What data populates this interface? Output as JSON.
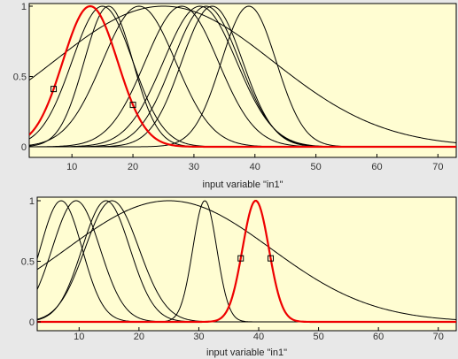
{
  "chart_data": [
    {
      "type": "line",
      "title": "",
      "xlabel": "input variable \"in1\"",
      "ylabel": "",
      "xlim": [
        3,
        73
      ],
      "ylim": [
        0,
        1
      ],
      "xticks": [
        "10",
        "20",
        "30",
        "40",
        "50",
        "60",
        "70"
      ],
      "yticks": [
        "0",
        "0.5",
        "1"
      ],
      "plot_background": "#fffdd2",
      "selected_color": "#ee0000",
      "curve_color": "#000000",
      "grid": false,
      "curves": [
        {
          "type": "gauss",
          "center": 13,
          "sigma": 4.5,
          "selected": true
        },
        {
          "type": "gauss",
          "center": 15,
          "sigma": 5.0,
          "selected": false
        },
        {
          "type": "gauss",
          "center": 16,
          "sigma": 4.0,
          "selected": false
        },
        {
          "type": "gauss",
          "center": 21,
          "sigma": 6.0,
          "selected": false
        },
        {
          "type": "gauss",
          "center": 25,
          "sigma": 18.0,
          "selected": false
        },
        {
          "type": "gauss",
          "center": 28,
          "sigma": 6.0,
          "selected": false
        },
        {
          "type": "gauss",
          "center": 31,
          "sigma": 6.0,
          "selected": false
        },
        {
          "type": "gauss",
          "center": 32,
          "sigma": 5.5,
          "selected": false
        },
        {
          "type": "gauss",
          "center": 33,
          "sigma": 5.0,
          "selected": false
        },
        {
          "type": "gauss",
          "center": 39,
          "sigma": 4.5,
          "selected": false
        }
      ],
      "handles": [
        7,
        20
      ]
    },
    {
      "type": "line",
      "title": "",
      "xlabel": "input variable \"in1\"",
      "ylabel": "",
      "xlim": [
        3,
        73
      ],
      "ylim": [
        0,
        1
      ],
      "xticks": [
        "10",
        "20",
        "30",
        "40",
        "50",
        "60",
        "70"
      ],
      "yticks": [
        "0",
        "0.5",
        "1"
      ],
      "plot_background": "#fffdd2",
      "selected_color": "#ee0000",
      "curve_color": "#000000",
      "grid": false,
      "curves": [
        {
          "type": "gauss",
          "center": 7,
          "sigma": 3.5,
          "selected": false
        },
        {
          "type": "gauss",
          "center": 9.5,
          "sigma": 4.0,
          "selected": false
        },
        {
          "type": "gauss",
          "center": 14.5,
          "sigma": 4.0,
          "selected": false
        },
        {
          "type": "gauss",
          "center": 15.5,
          "sigma": 4.5,
          "selected": false
        },
        {
          "type": "gauss",
          "center": 25,
          "sigma": 17.0,
          "selected": false
        },
        {
          "type": "gauss",
          "center": 31,
          "sigma": 2.0,
          "selected": false
        },
        {
          "type": "gauss",
          "center": 39.5,
          "sigma": 2.2,
          "selected": true
        }
      ],
      "handles": [
        37,
        42
      ]
    }
  ]
}
